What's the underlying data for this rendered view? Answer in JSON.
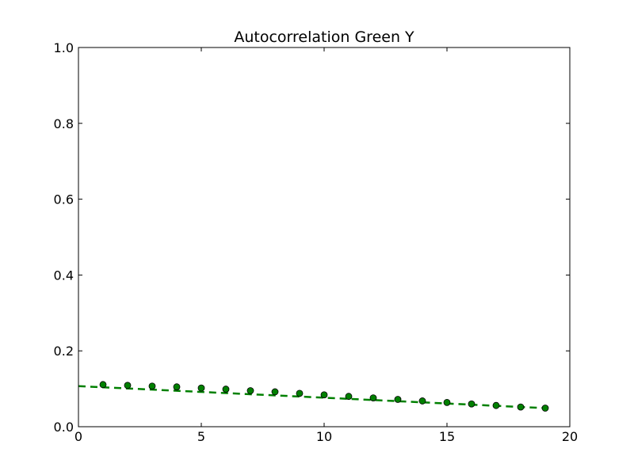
{
  "chart_data": {
    "type": "scatter",
    "title": "Autocorrelation Green Y",
    "xlabel": "",
    "ylabel": "",
    "xlim": [
      0,
      20
    ],
    "ylim": [
      0.0,
      1.0
    ],
    "x_ticks": [
      0,
      5,
      10,
      15,
      20
    ],
    "x_tick_labels": [
      "0",
      "5",
      "10",
      "15",
      "20"
    ],
    "y_ticks": [
      0.0,
      0.2,
      0.4,
      0.6,
      0.8,
      1.0
    ],
    "y_tick_labels": [
      "0.0",
      "0.2",
      "0.4",
      "0.6",
      "0.8",
      "1.0"
    ],
    "grid": false,
    "series": [
      {
        "marker": "circle",
        "color": "#008000",
        "x": [
          1,
          2,
          3,
          4,
          5,
          6,
          7,
          8,
          9,
          10,
          11,
          12,
          13,
          14,
          15,
          16,
          17,
          18,
          19
        ],
        "values": [
          0.111,
          0.109,
          0.107,
          0.105,
          0.102,
          0.099,
          0.095,
          0.092,
          0.088,
          0.084,
          0.08,
          0.076,
          0.072,
          0.068,
          0.064,
          0.06,
          0.056,
          0.052,
          0.049
        ]
      }
    ],
    "fit_line": {
      "style": "dashed",
      "color": "#008000",
      "x": [
        0,
        19
      ],
      "values": [
        0.107,
        0.049
      ]
    }
  }
}
